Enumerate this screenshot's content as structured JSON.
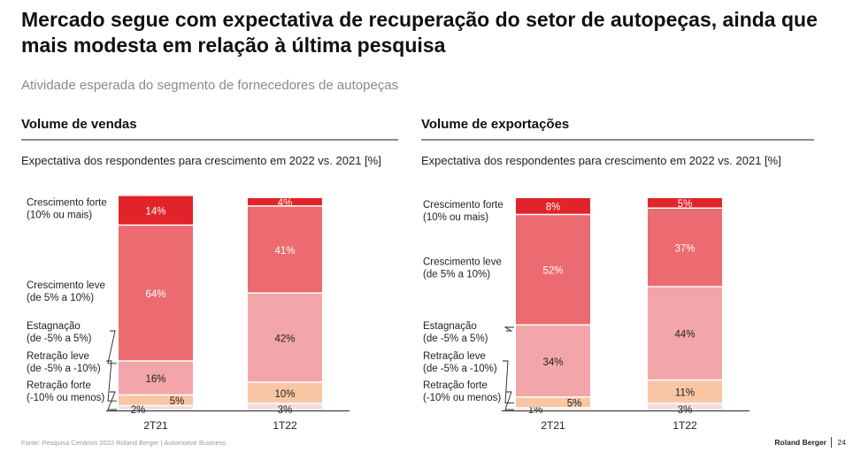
{
  "title": "Mercado segue com expectativa de recuperação do setor de autopeças, ainda que mais modesta em relação à última pesquisa",
  "subtitle": "Atividade esperada do segmento de fornecedores de autopeças",
  "panels": [
    {
      "title": "Volume de vendas",
      "subtitle": "Expectativa dos respondentes para crescimento em 2022 vs. 2021 [%]"
    },
    {
      "title": "Volume de exportações",
      "subtitle": "Expectativa dos respondentes para crescimento em 2022 vs. 2021 [%]"
    }
  ],
  "colors": {
    "forte": "#e2242a",
    "leve": "#ec6b70",
    "estagnacao": "#f3a6a9",
    "retracao_leve": "#f8c6a2",
    "retracao_forte": "#f7dbdb"
  },
  "chart_data": [
    {
      "type": "bar",
      "stacked": true,
      "categories": [
        "2T21",
        "1T22"
      ],
      "series": [
        {
          "name": "Retração forte (-10% ou menos)",
          "values": [
            2,
            3
          ]
        },
        {
          "name": "Retração leve (de -5% a -10%)",
          "values": [
            5,
            10
          ]
        },
        {
          "name": "Estagnação (de -5% a 5%)",
          "values": [
            16,
            42
          ]
        },
        {
          "name": "Crescimento leve (de 5% a 10%)",
          "values": [
            64,
            41
          ]
        },
        {
          "name": "Crescimento forte (10% ou mais)",
          "values": [
            14,
            4
          ]
        }
      ]
    },
    {
      "type": "bar",
      "stacked": true,
      "categories": [
        "2T21",
        "1T22"
      ],
      "series": [
        {
          "name": "Retração forte (-10% ou menos)",
          "values": [
            1,
            3
          ]
        },
        {
          "name": "Retração leve (de -5% a -10%)",
          "values": [
            5,
            11
          ]
        },
        {
          "name": "Estagnação (de -5% a 5%)",
          "values": [
            34,
            44
          ]
        },
        {
          "name": "Crescimento leve (de 5% a 10%)",
          "values": [
            52,
            37
          ]
        },
        {
          "name": "Crescimento forte (10% ou mais)",
          "values": [
            8,
            5
          ]
        }
      ]
    }
  ],
  "legend_labels": {
    "forte": [
      "Crescimento forte",
      "(10% ou mais)"
    ],
    "leve": [
      "Crescimento leve",
      "(de 5% a 10%)"
    ],
    "estagnacao": [
      "Estagnação",
      "(de -5% a 5%)"
    ],
    "retracao_leve": [
      "Retração leve",
      "(de -5% a -10%)"
    ],
    "retracao_forte": [
      "Retração forte",
      "(-10% ou menos)"
    ]
  },
  "footer": {
    "source": "Fonte: Pesquisa Cenários 2022 Roland Berger | Automotive Business",
    "brand": "Roland Berger",
    "page": "24"
  }
}
